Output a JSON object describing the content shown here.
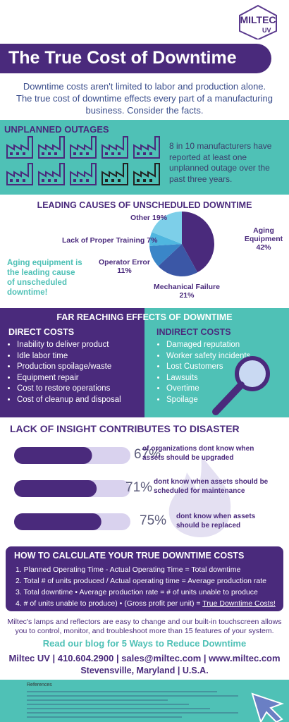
{
  "header": {
    "logo": "MILTEC",
    "logo_sub": "UV",
    "title": "The True Cost of Downtime",
    "intro": "Downtime costs aren't limited to labor and production alone. The true cost of downtime effects every part of a manufacturing business. Consider the facts."
  },
  "outages": {
    "title": "UNPLANNED OUTAGES",
    "text": "8 in 10 manufacturers have reported at least one unplanned outage over the past three years."
  },
  "causes": {
    "title": "LEADING CAUSES OF UNSCHEDULED DOWNTIME",
    "note": "Aging equipment is the leading cause of unscheduled downtime!",
    "chart": {
      "type": "pie",
      "categories": [
        "Aging Equipment",
        "Mechanical Failure",
        "Operator Error",
        "Lack of Proper Training",
        "Other"
      ],
      "values": [
        42,
        21,
        11,
        7,
        19
      ],
      "value_labels": [
        "42%",
        "21%",
        "11%",
        "7%",
        "19%"
      ],
      "colors": [
        "#4a2a7c",
        "#3b57a6",
        "#3a86c8",
        "#4fb6df",
        "#7dcfe9"
      ]
    }
  },
  "effects": {
    "title": "FAR REACHING EFFECTS OF DOWNTIME",
    "direct": {
      "title": "DIRECT COSTS",
      "items": [
        "Inability to deliver product",
        "Idle labor time",
        "Production spoilage/waste",
        "Equipment repair",
        "Cost to restore operations",
        "Cost of cleanup and disposal"
      ]
    },
    "indirect": {
      "title": "INDIRECT COSTS",
      "items": [
        "Damaged reputation",
        "Worker safety incidents",
        "Lost Customers",
        "Lawsuits",
        "Overtime",
        "Spoilage"
      ]
    }
  },
  "insight": {
    "title": "LACK OF INSIGHT CONTRIBUTES TO DISASTER",
    "chart": {
      "type": "bar",
      "categories": [
        "of organizations dont know when assets should be upgraded",
        "dont know when assets should be scheduled for maintenance",
        "dont know when assets should be replaced"
      ],
      "values": [
        67,
        71,
        75
      ],
      "value_labels": [
        "67%",
        "71%",
        "75%"
      ],
      "xlim": [
        0,
        100
      ],
      "color": "#4a2a7c"
    }
  },
  "calc": {
    "title": "HOW TO CALCULATE YOUR TRUE DOWNTIME COSTS",
    "steps": [
      "1. Planned Operating Time - Actual Operating Time = Total downtime",
      "2. Total # of units produced / Actual operating time =  Average production rate",
      "3. Total downtime • Average production rate = # of units unable to produce",
      "4. # of units unable to produce) • (Gross profit per unit) ="
    ],
    "result": "True Downtime Costs!"
  },
  "footer": {
    "text": "Miltec's lamps and reflectors are easy to change and our built-in touchscreen allows you to control, monitor, and troubleshoot more than 15 features of your system.",
    "blog": "Read our blog for 5 Ways to Reduce Downtime",
    "contact": "Miltec UV | 410.604.2900 | sales@miltec.com | www.miltec.com",
    "address": "Stevensville, Maryland | U.S.A.",
    "references": "References"
  }
}
